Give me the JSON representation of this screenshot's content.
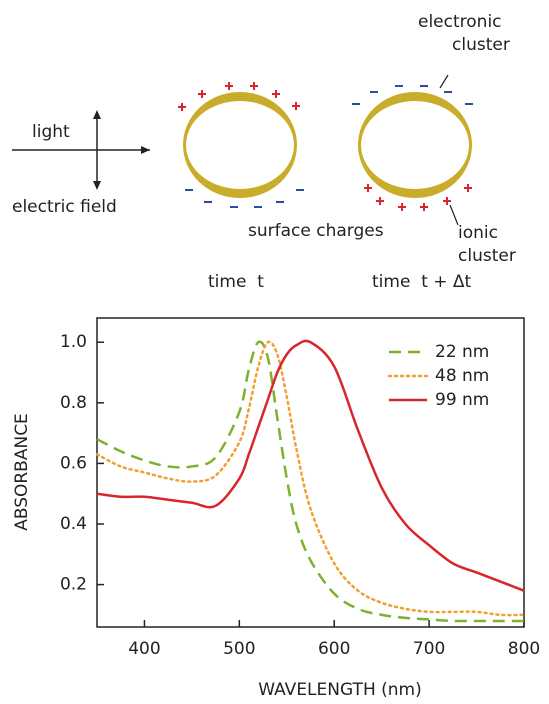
{
  "diagram": {
    "light": "light",
    "electric_field": "electric field",
    "surface_charges": "surface charges",
    "time_left": "time  t",
    "time_right": "time  t + Δt",
    "electronic_cluster": [
      "electronic",
      "cluster"
    ],
    "ionic_cluster": [
      "ionic",
      "cluster"
    ]
  },
  "chart_data": {
    "type": "line",
    "xlabel": "WAVELENGTH (nm)",
    "ylabel": "ABSORBANCE",
    "x": [
      350,
      375,
      400,
      425,
      450,
      475,
      500,
      510,
      520,
      530,
      540,
      550,
      560,
      575,
      600,
      625,
      650,
      675,
      700,
      725,
      750,
      775,
      800
    ],
    "series": [
      {
        "name": "22 nm",
        "color": "#7db22e",
        "dash": "dashed",
        "values": [
          0.68,
          0.64,
          0.61,
          0.59,
          0.59,
          0.62,
          0.77,
          0.91,
          1.0,
          0.95,
          0.75,
          0.55,
          0.4,
          0.28,
          0.17,
          0.12,
          0.1,
          0.09,
          0.085,
          0.08,
          0.08,
          0.08,
          0.08
        ]
      },
      {
        "name": "48 nm",
        "color": "#f0a030",
        "dash": "dotted",
        "values": [
          0.63,
          0.59,
          0.57,
          0.55,
          0.54,
          0.56,
          0.67,
          0.78,
          0.92,
          1.0,
          0.96,
          0.82,
          0.65,
          0.45,
          0.27,
          0.18,
          0.14,
          0.12,
          0.11,
          0.11,
          0.11,
          0.1,
          0.1
        ]
      },
      {
        "name": "99 nm",
        "color": "#d8262a",
        "dash": "solid",
        "values": [
          0.5,
          0.49,
          0.49,
          0.48,
          0.47,
          0.46,
          0.55,
          0.63,
          0.72,
          0.81,
          0.9,
          0.96,
          0.99,
          1.0,
          0.92,
          0.71,
          0.52,
          0.4,
          0.33,
          0.27,
          0.24,
          0.21,
          0.18
        ]
      }
    ],
    "xlim": [
      350,
      800
    ],
    "xticks": [
      400,
      500,
      600,
      700,
      800
    ],
    "ylim": [
      0.06,
      1.08
    ],
    "yticks": [
      0.2,
      0.4,
      0.6,
      0.8,
      {
        "value": 1,
        "label": "1.0"
      }
    ],
    "legend": "upper right"
  }
}
